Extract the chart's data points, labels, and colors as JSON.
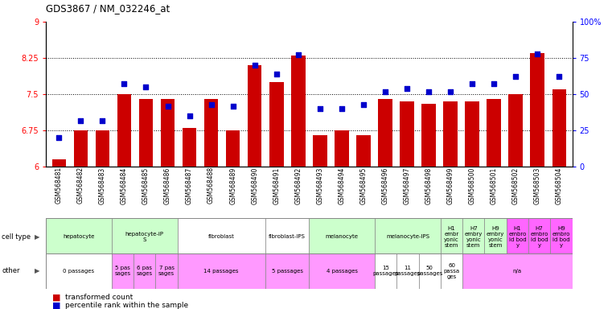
{
  "title": "GDS3867 / NM_032246_at",
  "samples": [
    "GSM568481",
    "GSM568482",
    "GSM568483",
    "GSM568484",
    "GSM568485",
    "GSM568486",
    "GSM568487",
    "GSM568488",
    "GSM568489",
    "GSM568490",
    "GSM568491",
    "GSM568492",
    "GSM568493",
    "GSM568494",
    "GSM568495",
    "GSM568496",
    "GSM568497",
    "GSM568498",
    "GSM568499",
    "GSM568500",
    "GSM568501",
    "GSM568502",
    "GSM568503",
    "GSM568504"
  ],
  "bar_values": [
    6.15,
    6.75,
    6.75,
    7.5,
    7.4,
    7.4,
    6.8,
    7.4,
    6.75,
    8.1,
    7.75,
    8.3,
    6.65,
    6.75,
    6.65,
    7.4,
    7.35,
    7.3,
    7.35,
    7.35,
    7.4,
    7.5,
    8.35,
    7.6
  ],
  "dot_percentile": [
    20,
    32,
    32,
    57,
    55,
    42,
    35,
    43,
    42,
    70,
    64,
    77,
    40,
    40,
    43,
    52,
    54,
    52,
    52,
    57,
    57,
    62,
    78,
    62
  ],
  "ylim_left": [
    6,
    9
  ],
  "ylim_right": [
    0,
    100
  ],
  "yticks_left": [
    6,
    6.75,
    7.5,
    8.25,
    9
  ],
  "yticks_right": [
    0,
    25,
    50,
    75,
    100
  ],
  "ytick_labels_left": [
    "6",
    "6.75",
    "7.5",
    "8.25",
    "9"
  ],
  "ytick_labels_right": [
    "0",
    "25",
    "50",
    "75",
    "100%"
  ],
  "bar_color": "#cc0000",
  "dot_color": "#0000cc",
  "hline_ticks": [
    6.75,
    7.5,
    8.25
  ],
  "cell_type_groups": [
    {
      "label": "hepatocyte",
      "start": 0,
      "end": 2,
      "color": "#ccffcc"
    },
    {
      "label": "hepatocyte-iP\nS",
      "start": 3,
      "end": 5,
      "color": "#ccffcc"
    },
    {
      "label": "fibroblast",
      "start": 6,
      "end": 9,
      "color": "#ffffff"
    },
    {
      "label": "fibroblast-IPS",
      "start": 10,
      "end": 11,
      "color": "#ffffff"
    },
    {
      "label": "melanocyte",
      "start": 12,
      "end": 14,
      "color": "#ccffcc"
    },
    {
      "label": "melanocyte-IPS",
      "start": 15,
      "end": 17,
      "color": "#ccffcc"
    },
    {
      "label": "H1\nembr\nyonic\nstem",
      "start": 18,
      "end": 18,
      "color": "#ccffcc"
    },
    {
      "label": "H7\nembry\nyonic\nstem",
      "start": 19,
      "end": 19,
      "color": "#ccffcc"
    },
    {
      "label": "H9\nembry\nyonic\nstem",
      "start": 20,
      "end": 20,
      "color": "#ccffcc"
    },
    {
      "label": "H1\nembro\nid bod\ny",
      "start": 21,
      "end": 21,
      "color": "#ff66ff"
    },
    {
      "label": "H7\nembro\nid bod\ny",
      "start": 22,
      "end": 22,
      "color": "#ff66ff"
    },
    {
      "label": "H9\nembro\nid bod\ny",
      "start": 23,
      "end": 23,
      "color": "#ff66ff"
    }
  ],
  "other_groups": [
    {
      "label": "0 passages",
      "start": 0,
      "end": 2,
      "color": "#ffffff"
    },
    {
      "label": "5 pas\nsages",
      "start": 3,
      "end": 3,
      "color": "#ff99ff"
    },
    {
      "label": "6 pas\nsages",
      "start": 4,
      "end": 4,
      "color": "#ff99ff"
    },
    {
      "label": "7 pas\nsages",
      "start": 5,
      "end": 5,
      "color": "#ff99ff"
    },
    {
      "label": "14 passages",
      "start": 6,
      "end": 9,
      "color": "#ff99ff"
    },
    {
      "label": "5 passages",
      "start": 10,
      "end": 11,
      "color": "#ff99ff"
    },
    {
      "label": "4 passages",
      "start": 12,
      "end": 14,
      "color": "#ff99ff"
    },
    {
      "label": "15\npassages",
      "start": 15,
      "end": 15,
      "color": "#ffffff"
    },
    {
      "label": "11\npassages",
      "start": 16,
      "end": 16,
      "color": "#ffffff"
    },
    {
      "label": "50\npassages",
      "start": 17,
      "end": 17,
      "color": "#ffffff"
    },
    {
      "label": "60\npassa\nges",
      "start": 18,
      "end": 18,
      "color": "#ffffff"
    },
    {
      "label": "n/a",
      "start": 19,
      "end": 23,
      "color": "#ff99ff"
    }
  ]
}
